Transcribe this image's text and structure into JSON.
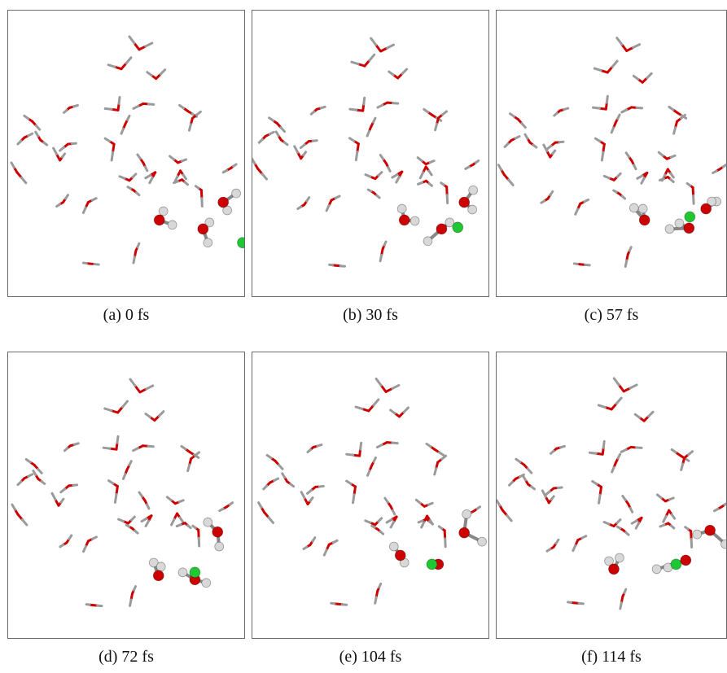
{
  "panels": [
    {
      "label": "(a) 0 fs"
    },
    {
      "label": "(b) 30 fs"
    },
    {
      "label": "(c) 57 fs"
    },
    {
      "label": "(d) 72 fs"
    },
    {
      "label": "(e) 104 fs"
    },
    {
      "label": "(f) 114 fs"
    }
  ],
  "colors": {
    "oxygen": "#cc0000",
    "hydrogen": "#d8d8d8",
    "chlorine": "#1fc832",
    "frame": "#6a6a6a"
  }
}
